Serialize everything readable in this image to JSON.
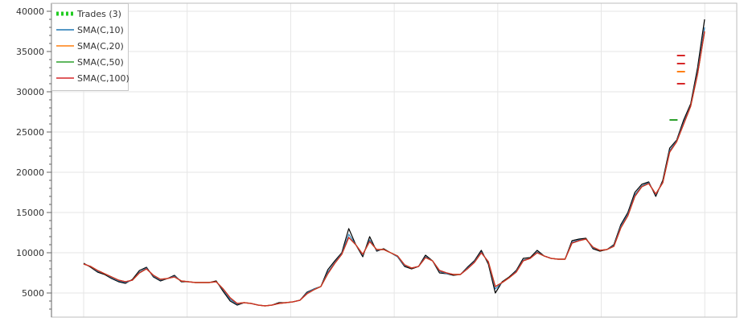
{
  "chart_data": {
    "type": "line",
    "title": "",
    "xlabel": "",
    "ylabel": "",
    "ylim": [
      2000,
      41000
    ],
    "y_ticks": [
      "5000",
      "10000",
      "15000",
      "20000",
      "25000",
      "30000",
      "35000",
      "40000"
    ],
    "y_tick_values": [
      5000,
      10000,
      15000,
      20000,
      25000,
      30000,
      35000,
      40000
    ],
    "x_index_range": [
      0,
      100
    ],
    "grid": true,
    "legend_placement": "top-left",
    "price_color": "#000000",
    "price_values": [
      8700,
      8200,
      7600,
      7300,
      6800,
      6400,
      6200,
      6700,
      7800,
      8200,
      7000,
      6500,
      6800,
      7200,
      6400,
      6400,
      6300,
      6300,
      6300,
      6500,
      5200,
      4000,
      3500,
      3800,
      3700,
      3500,
      3400,
      3500,
      3800,
      3800,
      3900,
      4100,
      5100,
      5500,
      5800,
      7900,
      9000,
      10000,
      13000,
      11000,
      9500,
      12000,
      10200,
      10500,
      10000,
      9500,
      8300,
      8000,
      8300,
      9700,
      9000,
      7500,
      7400,
      7200,
      7300,
      8200,
      9000,
      10300,
      8600,
      5000,
      6400,
      7000,
      7800,
      9300,
      9400,
      10300,
      9600,
      9300,
      9200,
      9200,
      11500,
      11700,
      11800,
      10500,
      10200,
      10400,
      11000,
      13500,
      15000,
      17500,
      18500,
      18800,
      17000,
      19000,
      23000,
      24000,
      26500,
      28500,
      33000,
      39000
    ],
    "series": [
      {
        "name": "SMA(C,10)",
        "color": "#1f77b4",
        "values": [
          8600,
          8300,
          7700,
          7400,
          6900,
          6500,
          6300,
          6600,
          7600,
          8100,
          7100,
          6600,
          6800,
          7100,
          6500,
          6400,
          6300,
          6300,
          6300,
          6400,
          5400,
          4200,
          3600,
          3800,
          3700,
          3500,
          3400,
          3500,
          3700,
          3800,
          3900,
          4100,
          5000,
          5500,
          5800,
          7600,
          8800,
          9900,
          12300,
          11000,
          9700,
          11600,
          10300,
          10400,
          10000,
          9500,
          8400,
          8100,
          8300,
          9500,
          9000,
          7700,
          7400,
          7300,
          7300,
          8100,
          8900,
          10100,
          8800,
          5500,
          6300,
          6900,
          7700,
          9100,
          9300,
          10100,
          9600,
          9300,
          9200,
          9200,
          11300,
          11600,
          11700,
          10600,
          10300,
          10400,
          10900,
          13300,
          14800,
          17200,
          18300,
          18700,
          17200,
          18800,
          22700,
          23900,
          26200,
          28300,
          32500,
          38000
        ]
      },
      {
        "name": "SMA(C,20)",
        "color": "#ff7f0e",
        "values": [
          8600,
          8300,
          7800,
          7400,
          7000,
          6600,
          6400,
          6600,
          7500,
          8000,
          7200,
          6700,
          6800,
          7000,
          6500,
          6400,
          6300,
          6300,
          6300,
          6400,
          5500,
          4400,
          3700,
          3800,
          3700,
          3500,
          3400,
          3500,
          3700,
          3800,
          3900,
          4100,
          4900,
          5400,
          5800,
          7400,
          8700,
          9800,
          11900,
          11000,
          9800,
          11400,
          10400,
          10400,
          10000,
          9600,
          8500,
          8100,
          8300,
          9400,
          9000,
          7800,
          7500,
          7300,
          7300,
          8000,
          8800,
          10000,
          8900,
          5800,
          6300,
          6900,
          7600,
          9000,
          9300,
          10000,
          9600,
          9300,
          9200,
          9200,
          11200,
          11500,
          11700,
          10700,
          10300,
          10400,
          10800,
          13100,
          14600,
          17000,
          18200,
          18600,
          17300,
          18700,
          22500,
          23800,
          26000,
          28200,
          32200,
          37500
        ]
      },
      {
        "name": "SMA(C,50)",
        "color": "#2ca02c",
        "values": [
          8600,
          8300,
          7800,
          7400,
          7000,
          6600,
          6400,
          6600,
          7500,
          8000,
          7200,
          6700,
          6800,
          7000,
          6500,
          6400,
          6300,
          6300,
          6300,
          6400,
          5500,
          4400,
          3700,
          3800,
          3700,
          3500,
          3400,
          3500,
          3700,
          3800,
          3900,
          4100,
          4900,
          5400,
          5800,
          7400,
          8700,
          9800,
          11900,
          11000,
          9800,
          11400,
          10400,
          10400,
          10000,
          9600,
          8500,
          8100,
          8300,
          9400,
          9000,
          7800,
          7500,
          7300,
          7300,
          8000,
          8800,
          10000,
          8900,
          5800,
          6300,
          6900,
          7600,
          9000,
          9300,
          10000,
          9600,
          9300,
          9200,
          9200,
          11200,
          11500,
          11700,
          10700,
          10300,
          10400,
          10800,
          13100,
          14600,
          17000,
          18200,
          18600,
          17300,
          18700,
          22500,
          23800,
          26000,
          28200,
          32200,
          37500
        ]
      },
      {
        "name": "SMA(C,100)",
        "color": "#d62728",
        "values": [
          8600,
          8300,
          7800,
          7400,
          7000,
          6600,
          6400,
          6600,
          7500,
          8000,
          7200,
          6700,
          6800,
          7000,
          6500,
          6400,
          6300,
          6300,
          6300,
          6400,
          5500,
          4400,
          3700,
          3800,
          3700,
          3500,
          3400,
          3500,
          3700,
          3800,
          3900,
          4100,
          4900,
          5400,
          5800,
          7400,
          8700,
          9800,
          11900,
          11000,
          9800,
          11400,
          10400,
          10400,
          10000,
          9600,
          8500,
          8100,
          8300,
          9400,
          9000,
          7800,
          7500,
          7300,
          7300,
          8000,
          8800,
          10000,
          8900,
          5800,
          6300,
          6900,
          7600,
          9000,
          9300,
          10000,
          9600,
          9300,
          9200,
          9200,
          11200,
          11500,
          11700,
          10700,
          10300,
          10400,
          10800,
          13100,
          14600,
          17000,
          18200,
          18600,
          17300,
          18700,
          22500,
          23800,
          26000,
          28200,
          32200,
          37500
        ]
      }
    ],
    "trades": {
      "name": "Trades (3)",
      "color": "#22cc22",
      "count": 3,
      "marks": [
        {
          "x": 95.0,
          "y": 26500,
          "color": "#2ca02c"
        },
        {
          "x": 96.2,
          "y": 34500,
          "color": "#d62728"
        },
        {
          "x": 96.2,
          "y": 33500,
          "color": "#d62728"
        },
        {
          "x": 96.2,
          "y": 32500,
          "color": "#ff7f0e"
        },
        {
          "x": 96.2,
          "y": 31000,
          "color": "#d62728"
        }
      ]
    }
  }
}
